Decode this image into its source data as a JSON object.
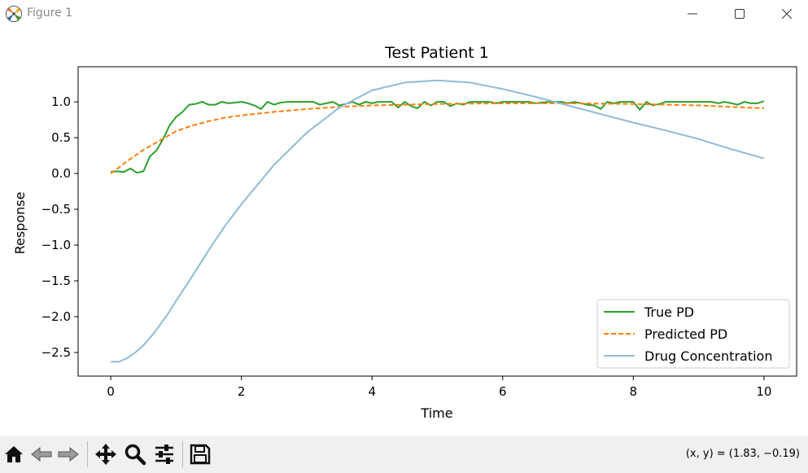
{
  "window": {
    "title": "Figure 1"
  },
  "toolbar": {
    "tools": [
      "home-icon",
      "back-icon",
      "forward-icon",
      "pan-icon",
      "zoom-icon",
      "configure-icon",
      "save-icon"
    ],
    "coords_text": "(x, y) = (1.83, −0.19)"
  },
  "chart_data": {
    "type": "line",
    "title": "Test Patient 1",
    "xlabel": "Time",
    "ylabel": "Response",
    "xlim": [
      -0.5,
      10.5
    ],
    "ylim": [
      -2.83,
      1.49
    ],
    "xticks": [
      0,
      2,
      4,
      6,
      8,
      10
    ],
    "xtick_labels": [
      "0",
      "2",
      "4",
      "6",
      "8",
      "10"
    ],
    "yticks": [
      -2.5,
      -2.0,
      -1.5,
      -1.0,
      -0.5,
      0.0,
      0.5,
      1.0
    ],
    "ytick_labels": [
      "−2.5",
      "−2.0",
      "−1.5",
      "−1.0",
      "−0.5",
      "0.0",
      "0.5",
      "1.0"
    ],
    "grid": false,
    "legend_position": "lower-right",
    "series": [
      {
        "name": "True PD",
        "color": "#2ca02c",
        "style": "solid",
        "x": [
          0,
          0.1,
          0.2,
          0.3,
          0.4,
          0.5,
          0.6,
          0.7,
          0.8,
          0.9,
          1.0,
          1.1,
          1.2,
          1.3,
          1.4,
          1.5,
          1.6,
          1.7,
          1.8,
          1.9,
          2.0,
          2.1,
          2.2,
          2.3,
          2.4,
          2.5,
          2.6,
          2.7,
          2.8,
          2.9,
          3.0,
          3.1,
          3.2,
          3.3,
          3.4,
          3.5,
          3.6,
          3.7,
          3.8,
          3.9,
          4.0,
          4.1,
          4.2,
          4.3,
          4.4,
          4.5,
          4.6,
          4.7,
          4.8,
          4.9,
          5.0,
          5.1,
          5.2,
          5.3,
          5.4,
          5.5,
          5.6,
          5.7,
          5.8,
          5.9,
          6.0,
          6.1,
          6.2,
          6.3,
          6.4,
          6.5,
          6.6,
          6.7,
          6.8,
          6.9,
          7.0,
          7.1,
          7.2,
          7.3,
          7.4,
          7.5,
          7.6,
          7.7,
          7.8,
          7.9,
          8.0,
          8.1,
          8.2,
          8.3,
          8.4,
          8.5,
          8.6,
          8.7,
          8.8,
          8.9,
          9.0,
          9.1,
          9.2,
          9.3,
          9.4,
          9.5,
          9.6,
          9.7,
          9.8,
          9.9,
          10.0
        ],
        "values": [
          0.02,
          0.03,
          0.02,
          0.07,
          0.01,
          0.03,
          0.24,
          0.32,
          0.48,
          0.67,
          0.79,
          0.86,
          0.96,
          0.97,
          1.0,
          0.96,
          0.96,
          1.0,
          0.98,
          0.99,
          1.0,
          0.98,
          0.95,
          0.9,
          1.0,
          0.96,
          0.99,
          1.0,
          1.0,
          1.0,
          1.0,
          1.0,
          0.96,
          0.98,
          1.0,
          0.95,
          0.97,
          1.0,
          0.96,
          1.0,
          0.98,
          1.0,
          1.0,
          1.0,
          0.92,
          1.0,
          0.94,
          0.91,
          1.0,
          0.95,
          1.0,
          1.0,
          0.94,
          0.98,
          0.96,
          1.0,
          1.0,
          1.0,
          1.0,
          0.98,
          1.0,
          1.0,
          1.0,
          1.0,
          1.0,
          0.98,
          0.99,
          1.0,
          1.0,
          1.0,
          0.98,
          1.0,
          0.98,
          0.96,
          0.95,
          0.9,
          1.0,
          0.98,
          1.0,
          1.0,
          1.0,
          0.89,
          1.0,
          0.95,
          0.97,
          1.0,
          1.0,
          1.0,
          1.0,
          1.0,
          1.0,
          1.0,
          1.0,
          0.98,
          1.0,
          0.98,
          0.96,
          1.0,
          0.98,
          0.98,
          1.01
        ]
      },
      {
        "name": "Predicted PD",
        "color": "#ff7f0e",
        "style": "dashed",
        "x": [
          0,
          0.25,
          0.5,
          0.75,
          1.0,
          1.25,
          1.5,
          1.75,
          2.0,
          2.5,
          3.0,
          3.5,
          4.0,
          5.0,
          6.0,
          7.0,
          8.0,
          9.0,
          10.0
        ],
        "values": [
          0.0,
          0.17,
          0.33,
          0.46,
          0.59,
          0.67,
          0.73,
          0.78,
          0.81,
          0.86,
          0.9,
          0.93,
          0.95,
          0.97,
          0.98,
          0.98,
          0.97,
          0.95,
          0.91
        ]
      },
      {
        "name": "Drug Concentration",
        "color": "#8fbbd8",
        "style": "solid",
        "x": [
          0,
          0.125,
          0.25,
          0.375,
          0.5,
          0.625,
          0.75,
          0.875,
          1.0,
          1.25,
          1.5,
          1.75,
          2.0,
          2.5,
          3.0,
          3.5,
          4.0,
          4.5,
          5.0,
          5.5,
          6.0,
          6.5,
          7.0,
          7.5,
          8.0,
          8.5,
          9.0,
          9.5,
          10.0
        ],
        "values": [
          -2.63,
          -2.63,
          -2.58,
          -2.5,
          -2.4,
          -2.27,
          -2.12,
          -1.96,
          -1.78,
          -1.43,
          -1.07,
          -0.73,
          -0.43,
          0.12,
          0.57,
          0.92,
          1.16,
          1.27,
          1.3,
          1.27,
          1.18,
          1.07,
          0.95,
          0.83,
          0.71,
          0.6,
          0.48,
          0.34,
          0.21
        ]
      }
    ]
  }
}
